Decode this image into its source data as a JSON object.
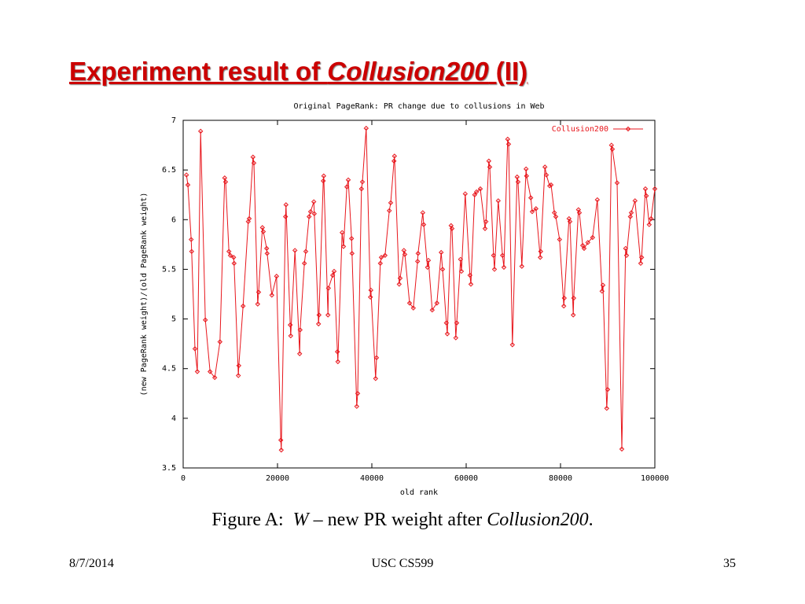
{
  "slide": {
    "title": {
      "plain": "Experiment result of ",
      "italic": "Collusion200",
      "end": " (II)"
    },
    "caption": {
      "lead": "Figure A:  ",
      "var": "W",
      "mid": " – new PR weight after ",
      "italic": "Collusion200",
      "end": "."
    },
    "footer": {
      "date": "8/7/2014",
      "course": "USC CS599",
      "page": "35"
    }
  },
  "chart_data": {
    "type": "line",
    "title": "Original PageRank: PR change due to collusions in Web",
    "xlabel": "old rank",
    "ylabel": "(new PageRank weight)/(old PageRank weight)",
    "xlim": [
      0,
      100000
    ],
    "ylim": [
      3.5,
      7
    ],
    "xticks": [
      0,
      20000,
      40000,
      60000,
      80000,
      100000
    ],
    "yticks": [
      3.5,
      4,
      4.5,
      5,
      5.5,
      6,
      6.5,
      7
    ],
    "grid": false,
    "legend": "upper right",
    "series": [
      {
        "name": "Collusion200",
        "color": "#e8161c",
        "x": [
          700,
          1000,
          1700,
          1800,
          2500,
          3000,
          3700,
          4700,
          5700,
          6700,
          7800,
          8800,
          9000,
          9700,
          10000,
          10700,
          10800,
          11700,
          11800,
          12700,
          13800,
          14000,
          14800,
          15000,
          15800,
          16000,
          16800,
          17000,
          17700,
          17800,
          18800,
          19800,
          20700,
          20800,
          21700,
          21800,
          22700,
          22800,
          23700,
          24700,
          24800,
          25700,
          26000,
          26700,
          27000,
          27700,
          27800,
          28700,
          28800,
          29700,
          29800,
          30700,
          30800,
          31700,
          32000,
          32700,
          32800,
          33700,
          34000,
          34700,
          35000,
          35700,
          35800,
          36800,
          37000,
          37800,
          38000,
          38800,
          39700,
          39800,
          40800,
          41000,
          41800,
          42000,
          42800,
          43700,
          44000,
          44700,
          44800,
          45800,
          46000,
          46800,
          47000,
          48000,
          48800,
          49700,
          49800,
          50800,
          51000,
          51800,
          52000,
          52800,
          53800,
          54700,
          55000,
          55800,
          56000,
          56800,
          57000,
          57800,
          58000,
          58800,
          59000,
          59800,
          60800,
          61000,
          61800,
          62200,
          63000,
          64000,
          64200,
          64800,
          65000,
          65800,
          66000,
          66800,
          67700,
          68000,
          68800,
          69000,
          69800,
          70800,
          71000,
          71800,
          72700,
          72800,
          73700,
          74000,
          74800,
          75700,
          75800,
          76700,
          77000,
          77700,
          78000,
          78700,
          79000,
          79800,
          80700,
          80800,
          81800,
          82000,
          82700,
          82800,
          83800,
          84000,
          84700,
          85000,
          85800,
          86800,
          87800,
          88800,
          89000,
          89800,
          90000,
          90800,
          91000,
          92000,
          93000,
          93800,
          94000,
          94800,
          95000,
          95800,
          97000,
          97200,
          98000,
          98200,
          98800,
          99200,
          100000
        ],
        "values": [
          6.45,
          6.35,
          5.8,
          5.68,
          4.7,
          4.47,
          6.89,
          4.99,
          4.47,
          4.41,
          4.77,
          6.42,
          6.38,
          5.68,
          5.64,
          5.62,
          5.56,
          4.43,
          4.53,
          5.13,
          5.98,
          6.01,
          6.63,
          6.57,
          5.15,
          5.27,
          5.92,
          5.88,
          5.71,
          5.66,
          5.24,
          5.43,
          3.78,
          3.68,
          6.03,
          6.15,
          4.94,
          4.83,
          5.69,
          4.65,
          4.89,
          5.56,
          5.68,
          6.03,
          6.08,
          6.18,
          6.06,
          4.95,
          5.04,
          6.39,
          6.44,
          5.04,
          5.31,
          5.44,
          5.48,
          4.67,
          4.57,
          5.87,
          5.73,
          6.33,
          6.4,
          5.81,
          5.66,
          4.12,
          4.25,
          6.31,
          6.38,
          6.92,
          5.22,
          5.29,
          4.4,
          4.61,
          5.56,
          5.62,
          5.64,
          6.09,
          6.17,
          6.59,
          6.64,
          5.35,
          5.41,
          5.69,
          5.65,
          5.16,
          5.11,
          5.58,
          5.66,
          6.07,
          5.95,
          5.52,
          5.59,
          5.09,
          5.16,
          5.67,
          5.5,
          4.96,
          4.85,
          5.94,
          5.91,
          4.81,
          4.96,
          5.6,
          5.48,
          6.26,
          5.44,
          5.35,
          6.25,
          6.28,
          6.31,
          5.91,
          5.98,
          6.59,
          6.53,
          5.64,
          5.5,
          6.19,
          5.64,
          5.52,
          6.81,
          6.76,
          4.74,
          6.43,
          6.38,
          5.53,
          6.51,
          6.44,
          6.22,
          6.08,
          6.11,
          5.62,
          5.68,
          6.53,
          6.45,
          6.34,
          6.35,
          6.07,
          6.03,
          5.8,
          5.13,
          5.21,
          6.01,
          5.98,
          5.04,
          5.21,
          6.1,
          6.07,
          5.74,
          5.71,
          5.77,
          5.82,
          6.2,
          5.28,
          5.34,
          4.1,
          4.29,
          6.75,
          6.71,
          6.37,
          3.69,
          5.71,
          5.64,
          6.03,
          6.07,
          6.19,
          5.56,
          5.62,
          6.31,
          6.24,
          5.95,
          6.01,
          6.31
        ]
      }
    ]
  }
}
